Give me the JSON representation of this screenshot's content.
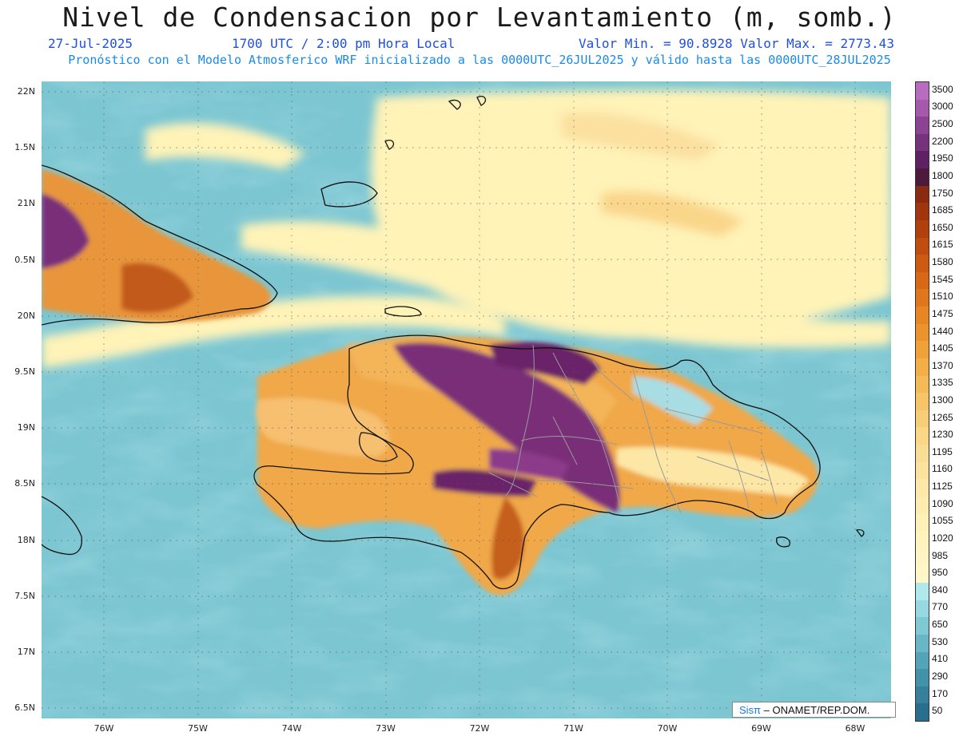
{
  "title": "Nivel de Condensacion por Levantamiento (m, somb.)",
  "date": "27-Jul-2025",
  "time": "1700 UTC / 2:00 pm Hora Local",
  "range": "Valor Min. = 90.8928  Valor Max. = 2773.43",
  "description": "Pronóstico con el Modelo Atmosferico WRF inicializado a las 0000UTC_26JUL2025 y válido hasta las  0000UTC_28JUL2025",
  "y_labels": [
    "22N",
    "1.5N",
    "21N",
    "0.5N",
    "20N",
    "9.5N",
    "19N",
    "8.5N",
    "18N",
    "7.5N",
    "17N",
    "6.5N"
  ],
  "x_labels": [
    "76W",
    "75W",
    "74W",
    "73W",
    "72W",
    "71W",
    "70W",
    "69W",
    "68W"
  ],
  "colorbar": {
    "levels": [
      "3500",
      "3000",
      "2500",
      "2200",
      "1950",
      "1800",
      "1750",
      "1685",
      "1650",
      "1615",
      "1580",
      "1545",
      "1510",
      "1475",
      "1440",
      "1405",
      "1370",
      "1335",
      "1300",
      "1265",
      "1230",
      "1195",
      "1160",
      "1125",
      "1090",
      "1055",
      "1020",
      "985",
      "950",
      "840",
      "770",
      "650",
      "530",
      "410",
      "290",
      "170",
      "50"
    ],
    "colors": [
      "#b86cc0",
      "#a459ac",
      "#8c4394",
      "#76327a",
      "#5e2262",
      "#4c1a3c",
      "#8a2a10",
      "#a0360e",
      "#b0400e",
      "#c04d10",
      "#cc5a12",
      "#d66816",
      "#df771c",
      "#e68624",
      "#eb942e",
      "#f0a23a",
      "#f3ae48",
      "#f5ba58",
      "#f7c468",
      "#f8cd78",
      "#f9d688",
      "#fadd94",
      "#fbe39f",
      "#fce8a8",
      "#fdecb0",
      "#fef0b8",
      "#fff3be",
      "#fff5c4",
      "#fff7c8",
      "#b0e8ec",
      "#98d8e2",
      "#80c8d4",
      "#68b6c6",
      "#54a4b8",
      "#4492aa",
      "#36809c",
      "#2a6e8e"
    ]
  },
  "credit_brand": "Sisπ",
  "credit_text": " – ONAMET/REP.DOM."
}
